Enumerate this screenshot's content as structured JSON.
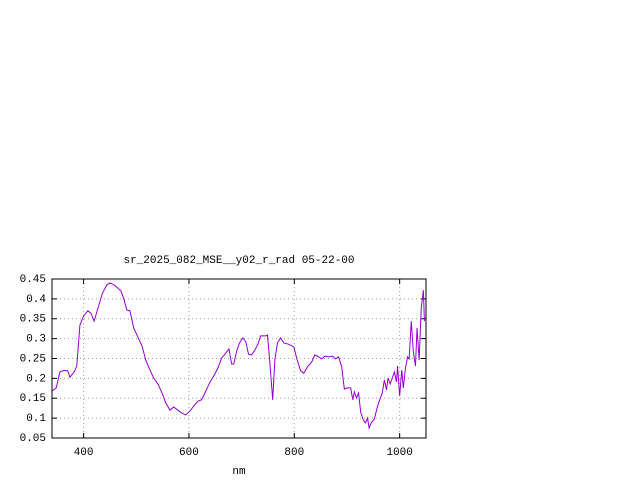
{
  "chart_data": {
    "type": "line",
    "title": "sr_2025_082_MSE__y02_r_rad 05-22-00",
    "x_label": "nm",
    "color": "#9400d3",
    "grid": true,
    "xlim": [
      340,
      1050
    ],
    "xticks": [
      400,
      600,
      800,
      1000
    ],
    "ylim": [
      0.05,
      0.45
    ],
    "yticks": [
      0.05,
      0.1,
      0.15,
      0.2,
      0.25,
      0.3,
      0.35,
      0.4,
      0.45
    ],
    "x": [
      340,
      348,
      355,
      363,
      370,
      374,
      382,
      387,
      393,
      400,
      408,
      414,
      420,
      428,
      436,
      444,
      450,
      458,
      465,
      471,
      477,
      482,
      488,
      495,
      503,
      511,
      518,
      526,
      533,
      541,
      549,
      556,
      564,
      571,
      579,
      586,
      594,
      602,
      609,
      617,
      624,
      632,
      640,
      647,
      655,
      662,
      670,
      676,
      681,
      685,
      691,
      696,
      702,
      708,
      713,
      719,
      725,
      731,
      736,
      746,
      749,
      753,
      759,
      763,
      768,
      774,
      780,
      789,
      799,
      806,
      812,
      818,
      825,
      833,
      839,
      844,
      852,
      858,
      865,
      873,
      878,
      884,
      890,
      895,
      901,
      907,
      911,
      914,
      918,
      922,
      926,
      931,
      935,
      939,
      942,
      946,
      952,
      958,
      964,
      967,
      971,
      975,
      978,
      982,
      986,
      990,
      994,
      996,
      1000,
      1004,
      1007,
      1011,
      1015,
      1018,
      1022,
      1026,
      1030,
      1033,
      1037,
      1041,
      1045,
      1047
    ],
    "values": [
      0.168,
      0.176,
      0.216,
      0.22,
      0.219,
      0.203,
      0.216,
      0.231,
      0.334,
      0.357,
      0.37,
      0.364,
      0.344,
      0.38,
      0.415,
      0.435,
      0.44,
      0.435,
      0.427,
      0.42,
      0.397,
      0.372,
      0.37,
      0.327,
      0.304,
      0.281,
      0.246,
      0.221,
      0.201,
      0.186,
      0.163,
      0.138,
      0.12,
      0.128,
      0.12,
      0.113,
      0.108,
      0.118,
      0.13,
      0.143,
      0.146,
      0.168,
      0.191,
      0.206,
      0.226,
      0.251,
      0.264,
      0.274,
      0.236,
      0.236,
      0.271,
      0.289,
      0.302,
      0.292,
      0.261,
      0.259,
      0.271,
      0.286,
      0.307,
      0.307,
      0.309,
      0.249,
      0.146,
      0.246,
      0.289,
      0.302,
      0.289,
      0.286,
      0.279,
      0.244,
      0.219,
      0.213,
      0.229,
      0.241,
      0.259,
      0.256,
      0.249,
      0.256,
      0.254,
      0.256,
      0.249,
      0.254,
      0.229,
      0.173,
      0.176,
      0.176,
      0.146,
      0.166,
      0.151,
      0.163,
      0.115,
      0.095,
      0.088,
      0.1,
      0.075,
      0.088,
      0.098,
      0.13,
      0.153,
      0.163,
      0.196,
      0.171,
      0.201,
      0.186,
      0.201,
      0.216,
      0.191,
      0.231,
      0.156,
      0.221,
      0.176,
      0.226,
      0.254,
      0.249,
      0.344,
      0.266,
      0.231,
      0.327,
      0.246,
      0.377,
      0.422,
      0.344
    ]
  }
}
